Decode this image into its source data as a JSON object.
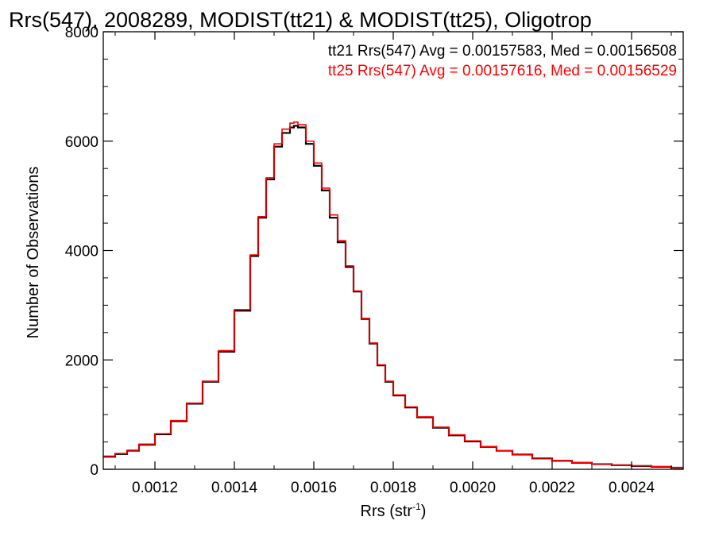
{
  "chart_data": {
    "type": "histogram-step",
    "title": "Rrs(547), 2008289, MODIST(tt21) & MODIST(tt25), Oligotrop",
    "xlabel": "Rrs (str",
    "xlabel_sup": "-1",
    "xlabel_close": ")",
    "ylabel": "Number of Observations",
    "xlim": [
      0.00107,
      0.00253
    ],
    "ylim": [
      0,
      8000
    ],
    "x_ticks": [
      {
        "value": 0.0012,
        "label": "0.0012"
      },
      {
        "value": 0.0014,
        "label": "0.0014"
      },
      {
        "value": 0.0016,
        "label": "0.0016"
      },
      {
        "value": 0.0018,
        "label": "0.0018"
      },
      {
        "value": 0.002,
        "label": "0.0020"
      },
      {
        "value": 0.0022,
        "label": "0.0022"
      },
      {
        "value": 0.0024,
        "label": "0.0024"
      }
    ],
    "y_ticks": [
      {
        "value": 0,
        "label": "0"
      },
      {
        "value": 2000,
        "label": "2000"
      },
      {
        "value": 4000,
        "label": "4000"
      },
      {
        "value": 6000,
        "label": "6000"
      },
      {
        "value": 8000,
        "label": "8000"
      }
    ],
    "grid": false,
    "legend": [
      {
        "text": "tt21 Rrs(547) Avg = 0.00157583, Med = 0.00156508",
        "color": "#000000"
      },
      {
        "text": "tt25 Rrs(547) Avg = 0.00157616, Med = 0.00156529",
        "color": "#ff0000"
      }
    ],
    "legend_position": "top-right",
    "series": [
      {
        "name": "tt21",
        "color": "#000000",
        "x": [
          0.00107,
          0.0011,
          0.00113,
          0.00116,
          0.0012,
          0.00124,
          0.00128,
          0.00132,
          0.00136,
          0.0014,
          0.00144,
          0.00146,
          0.00148,
          0.0015,
          0.00152,
          0.00154,
          0.00155,
          0.00156,
          0.00158,
          0.0016,
          0.00162,
          0.00164,
          0.00166,
          0.00168,
          0.0017,
          0.00172,
          0.00174,
          0.00176,
          0.00178,
          0.0018,
          0.00183,
          0.00186,
          0.0019,
          0.00194,
          0.00198,
          0.00202,
          0.00206,
          0.0021,
          0.00215,
          0.0022,
          0.00225,
          0.0023,
          0.00235,
          0.0024,
          0.00245,
          0.0025,
          0.00253
        ],
        "y": [
          230,
          280,
          340,
          450,
          640,
          880,
          1200,
          1600,
          2150,
          2900,
          3900,
          4600,
          5300,
          5900,
          6150,
          6250,
          6280,
          6250,
          5950,
          5550,
          5100,
          4600,
          4150,
          3700,
          3250,
          2750,
          2300,
          1900,
          1600,
          1350,
          1130,
          950,
          760,
          620,
          510,
          410,
          340,
          270,
          200,
          155,
          120,
          95,
          75,
          60,
          45,
          30,
          30
        ]
      },
      {
        "name": "tt25",
        "color": "#ff0000",
        "x": [
          0.00107,
          0.0011,
          0.00113,
          0.00116,
          0.0012,
          0.00124,
          0.00128,
          0.00132,
          0.00136,
          0.0014,
          0.00144,
          0.00146,
          0.00148,
          0.0015,
          0.00152,
          0.00154,
          0.00155,
          0.00156,
          0.00158,
          0.0016,
          0.00162,
          0.00164,
          0.00166,
          0.00168,
          0.0017,
          0.00172,
          0.00174,
          0.00176,
          0.00178,
          0.0018,
          0.00183,
          0.00186,
          0.0019,
          0.00194,
          0.00198,
          0.00202,
          0.00206,
          0.0021,
          0.00215,
          0.0022,
          0.00225,
          0.0023,
          0.00235,
          0.0024,
          0.00245,
          0.0025,
          0.00253
        ],
        "y": [
          240,
          290,
          350,
          460,
          650,
          890,
          1210,
          1610,
          2170,
          2920,
          3920,
          4620,
          5330,
          5950,
          6220,
          6330,
          6350,
          6300,
          6000,
          5600,
          5140,
          4650,
          4180,
          3720,
          3260,
          2760,
          2310,
          1910,
          1610,
          1360,
          1140,
          960,
          770,
          630,
          520,
          415,
          345,
          275,
          205,
          160,
          125,
          98,
          78,
          62,
          47,
          32,
          32
        ]
      }
    ]
  }
}
